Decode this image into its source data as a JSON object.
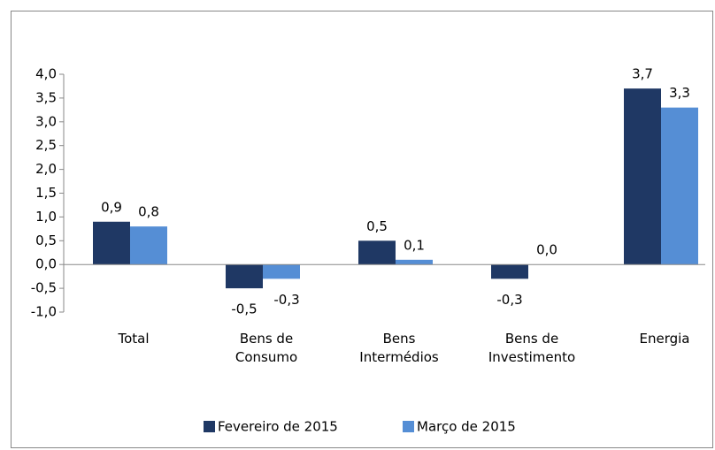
{
  "chart_data": {
    "type": "bar",
    "categories": [
      "Total",
      "Bens de Consumo",
      "Bens Intermédios",
      "Bens de Investimento",
      "Energia"
    ],
    "series": [
      {
        "name": "Fevereiro de 2015",
        "color": "#1f3864",
        "values": [
          0.9,
          -0.5,
          0.5,
          -0.3,
          3.7
        ],
        "value_labels": [
          "0,9",
          "-0,5",
          "0,5",
          "-0,3",
          "3,7"
        ]
      },
      {
        "name": "Março de 2015",
        "color": "#558ed5",
        "values": [
          0.8,
          -0.3,
          0.1,
          0.0,
          3.3
        ],
        "value_labels": [
          "0,8",
          "-0,3",
          "0,1",
          "0,0",
          "3,3"
        ]
      }
    ],
    "ylim": [
      -1,
      4
    ],
    "yticks": [
      {
        "value": -1,
        "label": "-1,0"
      },
      {
        "value": -0.5,
        "label": "-0,5"
      },
      {
        "value": 0,
        "label": "0,0"
      },
      {
        "value": 0.5,
        "label": "0,5"
      },
      {
        "value": 1,
        "label": "1,0"
      },
      {
        "value": 1.5,
        "label": "1,5"
      },
      {
        "value": 2,
        "label": "2,0"
      },
      {
        "value": 2.5,
        "label": "2,5"
      },
      {
        "value": 3,
        "label": "3,0"
      },
      {
        "value": 3.5,
        "label": "3,5"
      },
      {
        "value": 4,
        "label": "4,0"
      }
    ],
    "legend": "bottom"
  }
}
